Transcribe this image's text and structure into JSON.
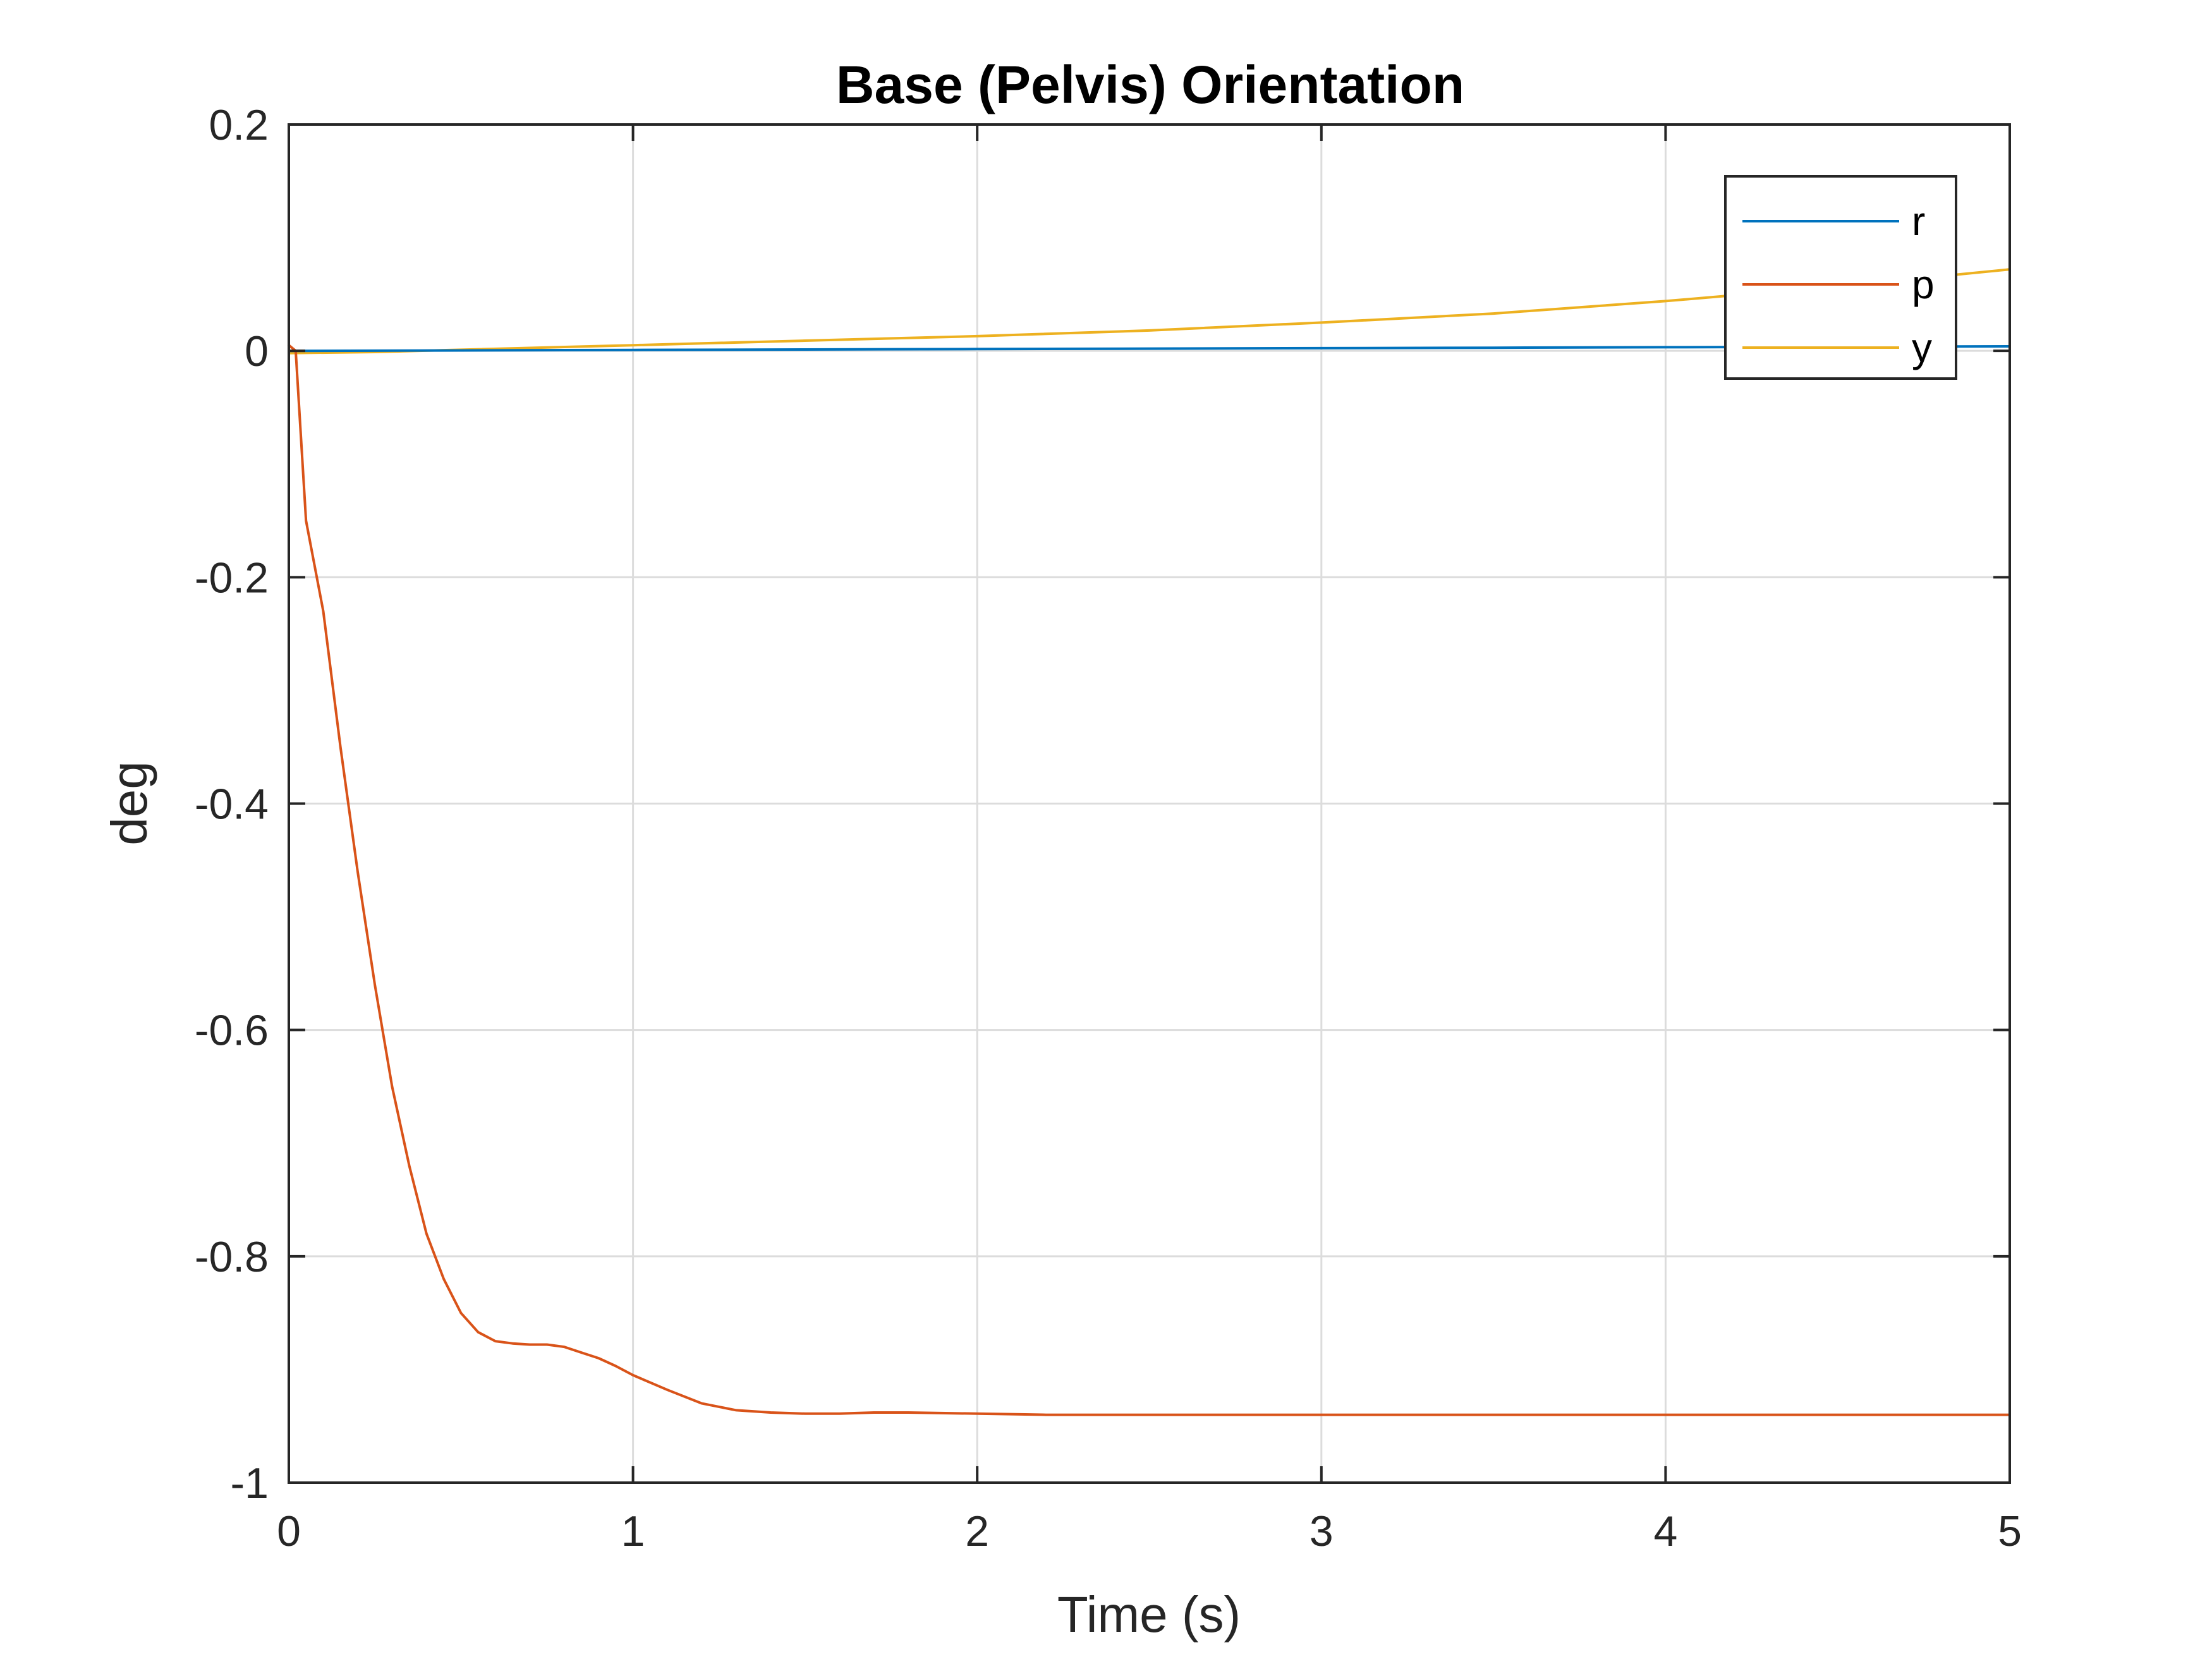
{
  "chart_data": {
    "type": "line",
    "title": "Base (Pelvis) Orientation",
    "xlabel": "Time (s)",
    "ylabel": "deg",
    "xlim": [
      0,
      5
    ],
    "ylim": [
      -1,
      0.2
    ],
    "x_ticks": [
      0,
      1,
      2,
      3,
      4,
      5
    ],
    "y_ticks": [
      -1,
      -0.8,
      -0.6,
      -0.4,
      -0.2,
      0,
      0.2
    ],
    "x_tick_labels": [
      "0",
      "1",
      "2",
      "3",
      "4",
      "5"
    ],
    "y_tick_labels": [
      "-1",
      "-0.8",
      "-0.6",
      "-0.4",
      "-0.2",
      "0",
      "0.2"
    ],
    "grid": true,
    "legend_position": "top-right",
    "series": [
      {
        "name": "r",
        "color": "#0072BD",
        "x": [
          0,
          0.5,
          1,
          1.5,
          2,
          2.5,
          3,
          3.5,
          4,
          4.5,
          5
        ],
        "y": [
          0,
          0.0004,
          0.0008,
          0.0012,
          0.0016,
          0.002,
          0.0024,
          0.0028,
          0.0032,
          0.0036,
          0.004
        ]
      },
      {
        "name": "p",
        "color": "#D95319",
        "x": [
          0,
          0.02,
          0.05,
          0.1,
          0.15,
          0.2,
          0.25,
          0.3,
          0.35,
          0.4,
          0.45,
          0.5,
          0.55,
          0.6,
          0.65,
          0.7,
          0.75,
          0.8,
          0.85,
          0.9,
          0.95,
          1.0,
          1.1,
          1.2,
          1.3,
          1.4,
          1.5,
          1.6,
          1.7,
          1.8,
          2.0,
          2.2,
          2.4,
          2.6,
          3.0,
          3.5,
          4.0,
          4.5,
          5.0
        ],
        "y": [
          0.005,
          0.0,
          -0.15,
          -0.23,
          -0.35,
          -0.46,
          -0.56,
          -0.65,
          -0.72,
          -0.78,
          -0.82,
          -0.85,
          -0.867,
          -0.875,
          -0.877,
          -0.878,
          -0.878,
          -0.88,
          -0.885,
          -0.89,
          -0.897,
          -0.905,
          -0.918,
          -0.93,
          -0.936,
          -0.938,
          -0.939,
          -0.939,
          -0.938,
          -0.938,
          -0.939,
          -0.94,
          -0.94,
          -0.94,
          -0.94,
          -0.94,
          -0.94,
          -0.94,
          -0.94
        ]
      },
      {
        "name": "y",
        "color": "#EDB120",
        "x": [
          0,
          0.25,
          0.5,
          1.0,
          1.5,
          2.0,
          2.5,
          3.0,
          3.5,
          4.0,
          4.5,
          5.0
        ],
        "y": [
          -0.002,
          -0.001,
          0.001,
          0.005,
          0.009,
          0.013,
          0.018,
          0.025,
          0.033,
          0.044,
          0.057,
          0.072
        ]
      }
    ]
  }
}
